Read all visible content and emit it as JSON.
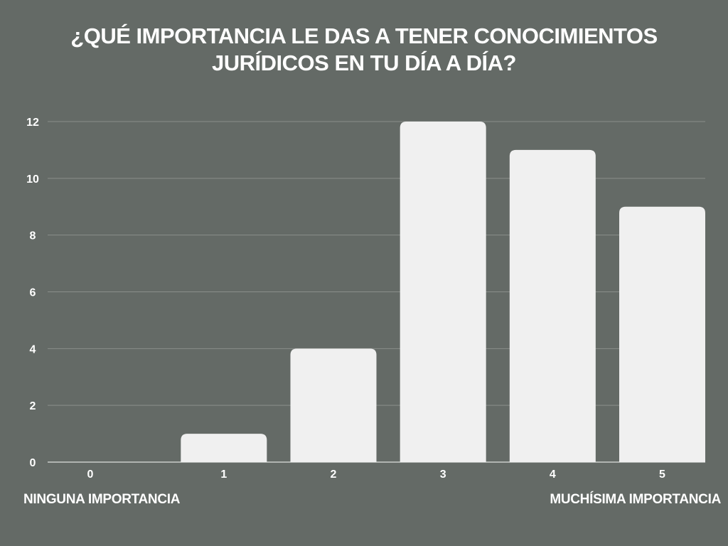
{
  "chart_data": {
    "type": "bar",
    "title_lines": [
      "¿QUÉ IMPORTANCIA LE DAS A TENER CONOCIMIENTOS",
      "JURÍDICOS EN TU DÍA A DÍA?"
    ],
    "categories": [
      "0",
      "1",
      "2",
      "3",
      "4",
      "5"
    ],
    "values": [
      0,
      1,
      4,
      12,
      11,
      9
    ],
    "yticks": [
      "0",
      "2",
      "4",
      "6",
      "8",
      "10",
      "12"
    ],
    "ylim": [
      0,
      12
    ],
    "xlabel": "",
    "ylabel": "",
    "grid": true,
    "bar_color": "#f0f0f0",
    "background_color": "#646a66",
    "grid_color": "#8a8f8b"
  },
  "annotations": {
    "left": "NINGUNA IMPORTANCIA",
    "right": "MUCHÍSIMA IMPORTANCIA"
  }
}
